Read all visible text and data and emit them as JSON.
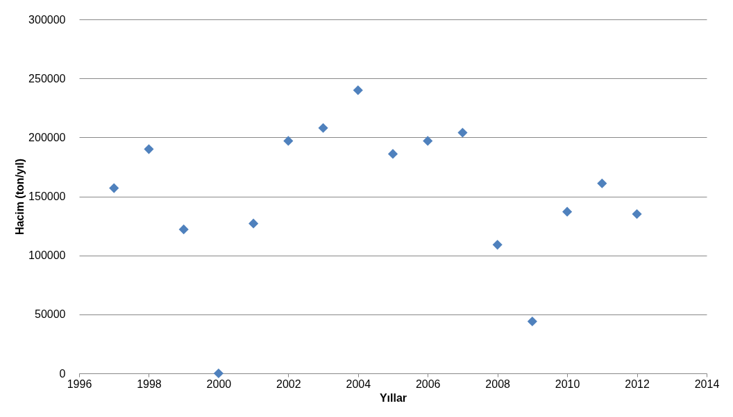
{
  "chart_data": {
    "type": "scatter",
    "xlabel": "Yıllar",
    "ylabel": "Hacim (ton/yıl)",
    "x": [
      1997,
      1998,
      1999,
      2000,
      2001,
      2002,
      2003,
      2004,
      2005,
      2006,
      2007,
      2008,
      2009,
      2010,
      2011,
      2012
    ],
    "series": [
      {
        "color": "#4f81bd",
        "values": [
          157000,
          190000,
          122000,
          0,
          127000,
          197000,
          208000,
          240000,
          186000,
          197000,
          204000,
          109000,
          44000,
          137000,
          161000,
          135000
        ]
      }
    ],
    "xlim": [
      1996,
      2014
    ],
    "xticks": [
      1996,
      1998,
      2000,
      2002,
      2004,
      2006,
      2008,
      2010,
      2012,
      2014
    ],
    "ylim": [
      0,
      300000
    ],
    "yticks": [
      0,
      50000,
      100000,
      150000,
      200000,
      250000,
      300000
    ],
    "grid": "y",
    "marker": "diamond"
  }
}
